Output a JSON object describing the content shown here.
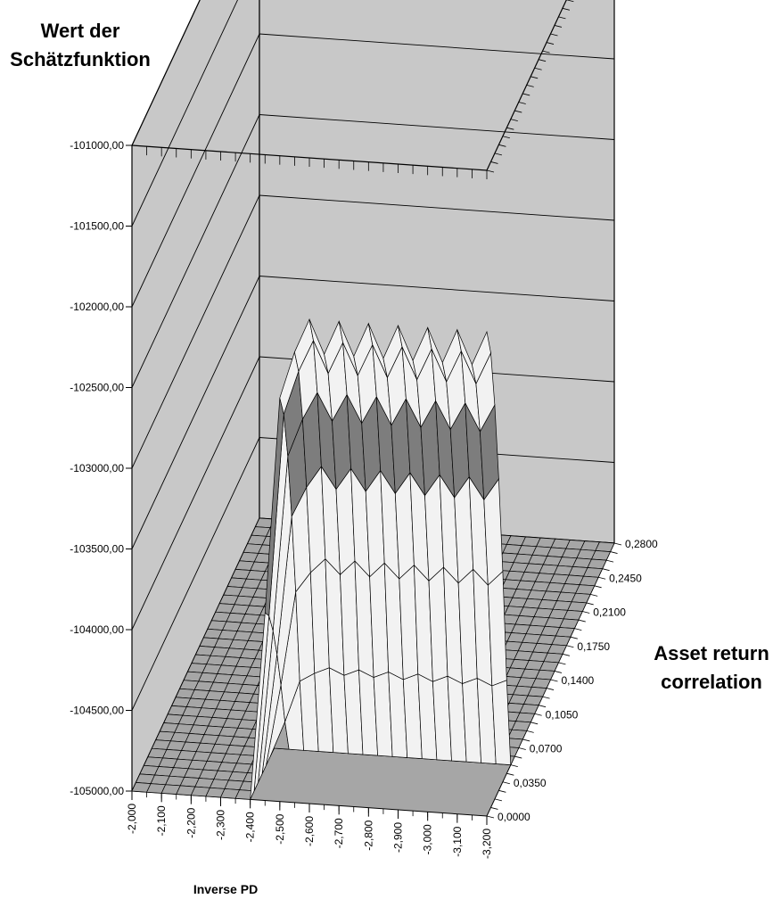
{
  "chart_data": {
    "type": "surface",
    "zlabel": [
      "Wert der",
      "Schätzfunktion"
    ],
    "ylabel": [
      "Asset return",
      "correlation"
    ],
    "xlabel": "Inverse PD",
    "z_ticks": [
      "-101000,00",
      "-101500,00",
      "-102000,00",
      "-102500,00",
      "-103000,00",
      "-103500,00",
      "-104000,00",
      "-104500,00",
      "-105000,00"
    ],
    "zlim": [
      -105000,
      -101000
    ],
    "x_ticks": [
      "-2,000",
      "-2,100",
      "-2,200",
      "-2,300",
      "-2,400",
      "-2,500",
      "-2,600",
      "-2,700",
      "-2,800",
      "-2,900",
      "-3,000",
      "-3,100",
      "-3,200"
    ],
    "xlim": [
      -2.0,
      -3.2
    ],
    "y_ticks": [
      "0,0000",
      "0,0350",
      "0,0700",
      "0,1050",
      "0,1400",
      "0,1750",
      "0,2100",
      "0,2450",
      "0,2800"
    ],
    "ylim": [
      0.0,
      0.28
    ],
    "surface": {
      "x_grid_count": 25,
      "y_grid_count": 33,
      "floor_value": -105000,
      "ridge_peak": -102000,
      "ridge_x_range": [
        -2.4,
        -3.2
      ],
      "ridge_y_range": [
        0.0,
        0.05
      ]
    },
    "colors": {
      "wall": "#c8c8c8",
      "floor": "#a6a6a6",
      "surface_light": "#f2f2f2",
      "surface_dark": "#7d7d7d",
      "grid": "#000000"
    }
  }
}
